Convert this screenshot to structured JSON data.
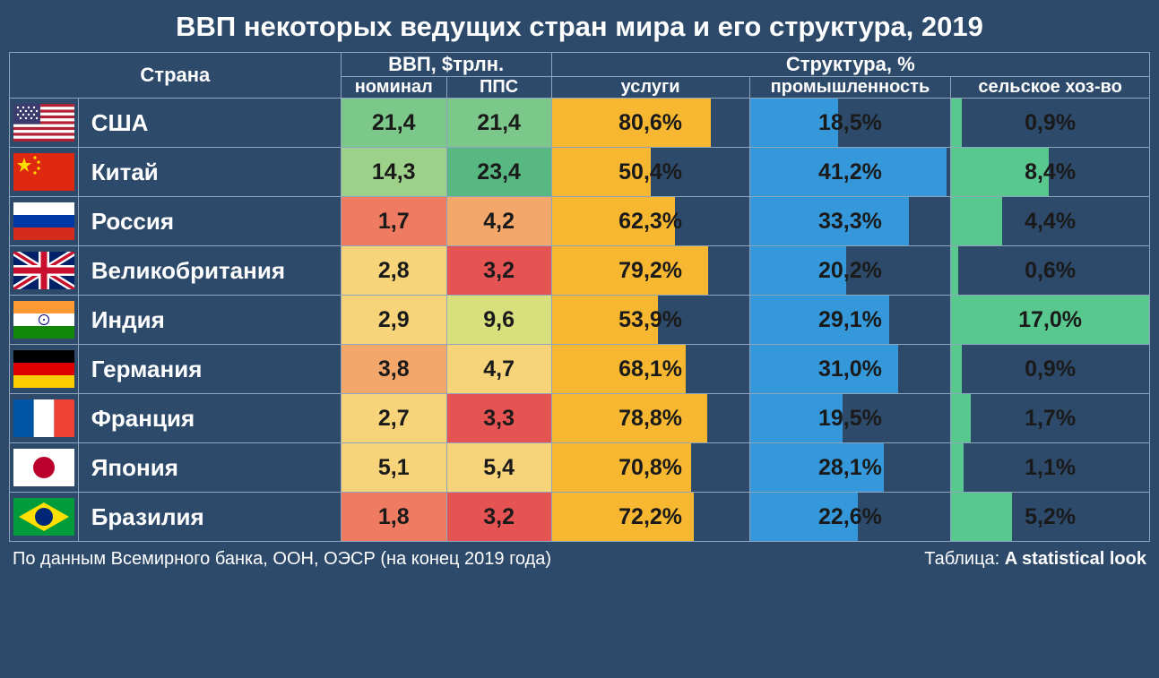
{
  "title": "ВВП некоторых ведущих стран мира и его структура, 2019",
  "headers": {
    "country": "Страна",
    "gdp": "ВВП, $трлн.",
    "structure": "Структура, %",
    "nominal": "номинал",
    "ppp": "ППС",
    "services": "услуги",
    "industry": "промышленность",
    "agriculture": "сельское хоз-во"
  },
  "colors": {
    "background": "#2d4a6b",
    "border": "#8fa5bd",
    "text_header": "#ffffff",
    "text_cell": "#1a1a1a",
    "services_bar": "#f7b731",
    "industry_bar": "#3498db",
    "agriculture_bar": "#58c88e",
    "heat_scale": [
      "#e55353",
      "#ef7b62",
      "#f3a76b",
      "#f7d37a",
      "#d8e07e",
      "#a7d98c",
      "#7cc88a",
      "#58b882"
    ]
  },
  "heat_scale_comment": "GDP cells use a red(low)→yellow(mid)→green(high) heat scale",
  "pct_bar_scale_comment": "services bar: 100% width = 100%; industry bar / agriculture bar fill proportional within their columns (max ≈ 42% / 17%)",
  "rows": [
    {
      "flag": "usa",
      "country": "США",
      "nominal": "21,4",
      "nominal_color": "#7cc88a",
      "ppp": "21,4",
      "ppp_color": "#7cc88a",
      "services": "80,6%",
      "services_pct": 80.6,
      "industry": "18,5%",
      "industry_pct": 18.5,
      "agriculture": "0,9%",
      "agriculture_pct": 0.9
    },
    {
      "flag": "china",
      "country": "Китай",
      "nominal": "14,3",
      "nominal_color": "#9dd18a",
      "ppp": "23,4",
      "ppp_color": "#58b882",
      "services": "50,4%",
      "services_pct": 50.4,
      "industry": "41,2%",
      "industry_pct": 41.2,
      "agriculture": "8,4%",
      "agriculture_pct": 8.4
    },
    {
      "flag": "russia",
      "country": "Россия",
      "nominal": "1,7",
      "nominal_color": "#ef7b62",
      "ppp": "4,2",
      "ppp_color": "#f3a76b",
      "services": "62,3%",
      "services_pct": 62.3,
      "industry": "33,3%",
      "industry_pct": 33.3,
      "agriculture": "4,4%",
      "agriculture_pct": 4.4
    },
    {
      "flag": "uk",
      "country": "Великобритания",
      "nominal": "2,8",
      "nominal_color": "#f7d37a",
      "ppp": "3,2",
      "ppp_color": "#e55353",
      "services": "79,2%",
      "services_pct": 79.2,
      "industry": "20,2%",
      "industry_pct": 20.2,
      "agriculture": "0,6%",
      "agriculture_pct": 0.6
    },
    {
      "flag": "india",
      "country": "Индия",
      "nominal": "2,9",
      "nominal_color": "#f7d37a",
      "ppp": "9,6",
      "ppp_color": "#d8e07e",
      "services": "53,9%",
      "services_pct": 53.9,
      "industry": "29,1%",
      "industry_pct": 29.1,
      "agriculture": "17,0%",
      "agriculture_pct": 17.0
    },
    {
      "flag": "germany",
      "country": "Германия",
      "nominal": "3,8",
      "nominal_color": "#f3a76b",
      "ppp": "4,7",
      "ppp_color": "#f7d37a",
      "services": "68,1%",
      "services_pct": 68.1,
      "industry": "31,0%",
      "industry_pct": 31.0,
      "agriculture": "0,9%",
      "agriculture_pct": 0.9
    },
    {
      "flag": "france",
      "country": "Франция",
      "nominal": "2,7",
      "nominal_color": "#f7d37a",
      "ppp": "3,3",
      "ppp_color": "#e55353",
      "services": "78,8%",
      "services_pct": 78.8,
      "industry": "19,5%",
      "industry_pct": 19.5,
      "agriculture": "1,7%",
      "agriculture_pct": 1.7
    },
    {
      "flag": "japan",
      "country": "Япония",
      "nominal": "5,1",
      "nominal_color": "#f7d37a",
      "ppp": "5,4",
      "ppp_color": "#f7d37a",
      "services": "70,8%",
      "services_pct": 70.8,
      "industry": "28,1%",
      "industry_pct": 28.1,
      "agriculture": "1,1%",
      "agriculture_pct": 1.1
    },
    {
      "flag": "brazil",
      "country": "Бразилия",
      "nominal": "1,8",
      "nominal_color": "#ef7b62",
      "ppp": "3,2",
      "ppp_color": "#e55353",
      "services": "72,2%",
      "services_pct": 72.2,
      "industry": "22,6%",
      "industry_pct": 22.6,
      "agriculture": "5,2%",
      "agriculture_pct": 5.2
    }
  ],
  "footer": {
    "source": "По данным Всемирного банка, ООН, ОЭСР (на конец 2019 года)",
    "credit_label": "Таблица:",
    "credit_name": "A statistical look"
  },
  "fontsize": {
    "title": 31,
    "header": 22,
    "header_small": 20,
    "country": 26,
    "cell": 25,
    "footer": 20
  }
}
